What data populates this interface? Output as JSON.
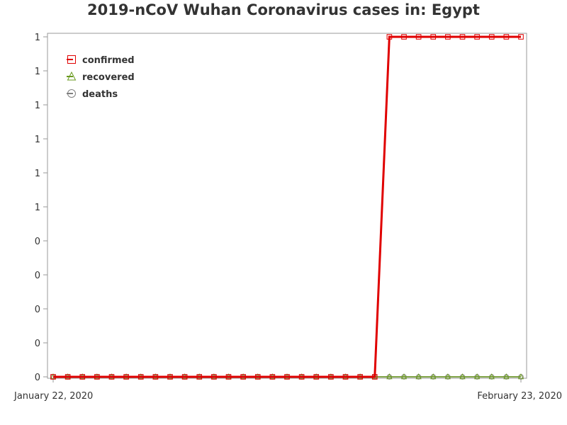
{
  "chart_data": {
    "type": "line",
    "title": "2019-nCoV Wuhan Coronavirus cases in: Egypt",
    "xlabel": "",
    "ylabel": "",
    "x": [
      "2020-01-22",
      "2020-01-23",
      "2020-01-24",
      "2020-01-25",
      "2020-01-26",
      "2020-01-27",
      "2020-01-28",
      "2020-01-29",
      "2020-01-30",
      "2020-01-31",
      "2020-02-01",
      "2020-02-02",
      "2020-02-03",
      "2020-02-04",
      "2020-02-05",
      "2020-02-06",
      "2020-02-07",
      "2020-02-08",
      "2020-02-09",
      "2020-02-10",
      "2020-02-11",
      "2020-02-12",
      "2020-02-13",
      "2020-02-14",
      "2020-02-15",
      "2020-02-16",
      "2020-02-17",
      "2020-02-18",
      "2020-02-19",
      "2020-02-20",
      "2020-02-21",
      "2020-02-22",
      "2020-02-23"
    ],
    "x_tick_labels": [
      "January 22, 2020",
      "February 23, 2020"
    ],
    "ylim": [
      0,
      1
    ],
    "y_tick_labels": [
      "0",
      "0",
      "0",
      "0",
      "0",
      "1",
      "1",
      "1",
      "1",
      "1",
      "1"
    ],
    "grid": false,
    "legend_position": "top-left, inside plot",
    "series": [
      {
        "name": "confirmed",
        "color": "#e00000",
        "marker": "square",
        "values": [
          0,
          0,
          0,
          0,
          0,
          0,
          0,
          0,
          0,
          0,
          0,
          0,
          0,
          0,
          0,
          0,
          0,
          0,
          0,
          0,
          0,
          0,
          0,
          1,
          1,
          1,
          1,
          1,
          1,
          1,
          1,
          1,
          1
        ]
      },
      {
        "name": "recovered",
        "color": "#6a9a1f",
        "marker": "triangle",
        "values": [
          0,
          0,
          0,
          0,
          0,
          0,
          0,
          0,
          0,
          0,
          0,
          0,
          0,
          0,
          0,
          0,
          0,
          0,
          0,
          0,
          0,
          0,
          0,
          0,
          0,
          0,
          0,
          0,
          0,
          0,
          0,
          0,
          0
        ]
      },
      {
        "name": "deaths",
        "color": "#808080",
        "marker": "circle",
        "values": [
          0,
          0,
          0,
          0,
          0,
          0,
          0,
          0,
          0,
          0,
          0,
          0,
          0,
          0,
          0,
          0,
          0,
          0,
          0,
          0,
          0,
          0,
          0,
          0,
          0,
          0,
          0,
          0,
          0,
          0,
          0,
          0,
          0
        ]
      }
    ]
  }
}
